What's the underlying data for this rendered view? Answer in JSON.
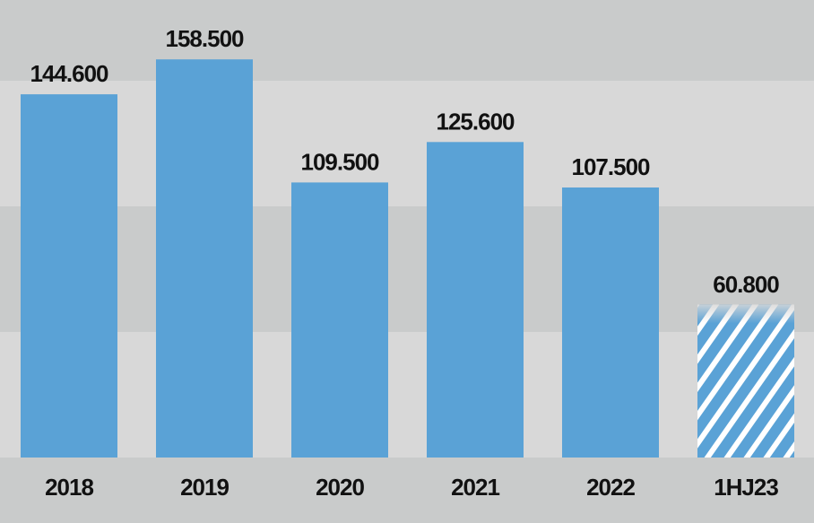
{
  "chart_data": {
    "type": "bar",
    "title": "",
    "xlabel": "",
    "ylabel": "",
    "categories": [
      "2018",
      "2019",
      "2020",
      "2021",
      "2022",
      "1HJ23"
    ],
    "values": [
      144600,
      158500,
      109500,
      125600,
      107500,
      60800
    ],
    "value_labels": [
      "144.600",
      "158.500",
      "109.500",
      "125.600",
      "107.500",
      "60.800"
    ],
    "hatched": [
      false,
      false,
      false,
      false,
      false,
      true
    ],
    "ylim": [
      0,
      180000
    ],
    "grid": "alternating horizontal bands",
    "legend": "none"
  },
  "colors": {
    "bar": "#5aa2d6",
    "background_dark": "#c9cbcb",
    "background_light": "#d8d8d8",
    "text": "#111111"
  }
}
